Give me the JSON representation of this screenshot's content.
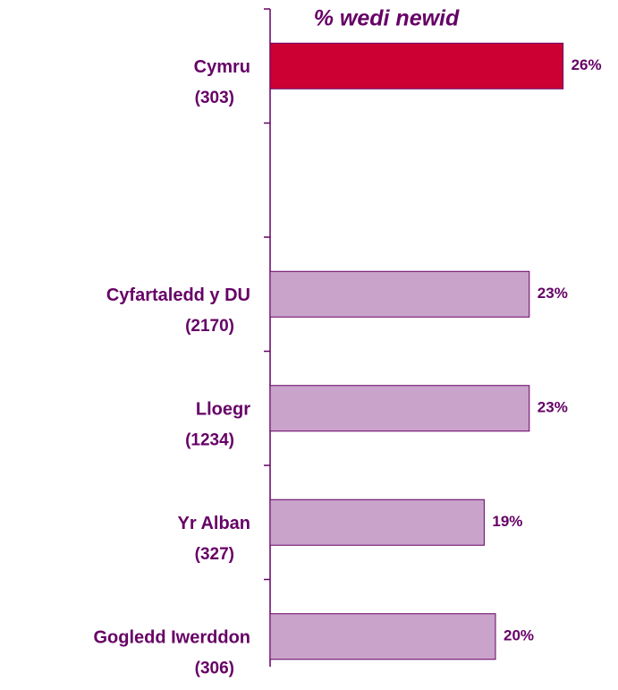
{
  "chart_data": {
    "type": "bar",
    "orientation": "horizontal",
    "title": "% wedi newid",
    "categories": [
      "Cymru",
      null,
      "Cyfartaledd y DU",
      "Lloegr",
      "Yr Alban",
      "Gogledd Iwerddon"
    ],
    "sample_sizes": [
      "(303)",
      null,
      "(2170)",
      "(1234)",
      "(327)",
      "(306)"
    ],
    "values": [
      26,
      null,
      23,
      23,
      19,
      20
    ],
    "value_labels": [
      "26%",
      null,
      "23%",
      "23%",
      "19%",
      "20%"
    ],
    "colors": [
      "#cc0033",
      null,
      "#c9a3c9",
      "#c9a3c9",
      "#c9a3c9",
      "#c9a3c9"
    ]
  }
}
